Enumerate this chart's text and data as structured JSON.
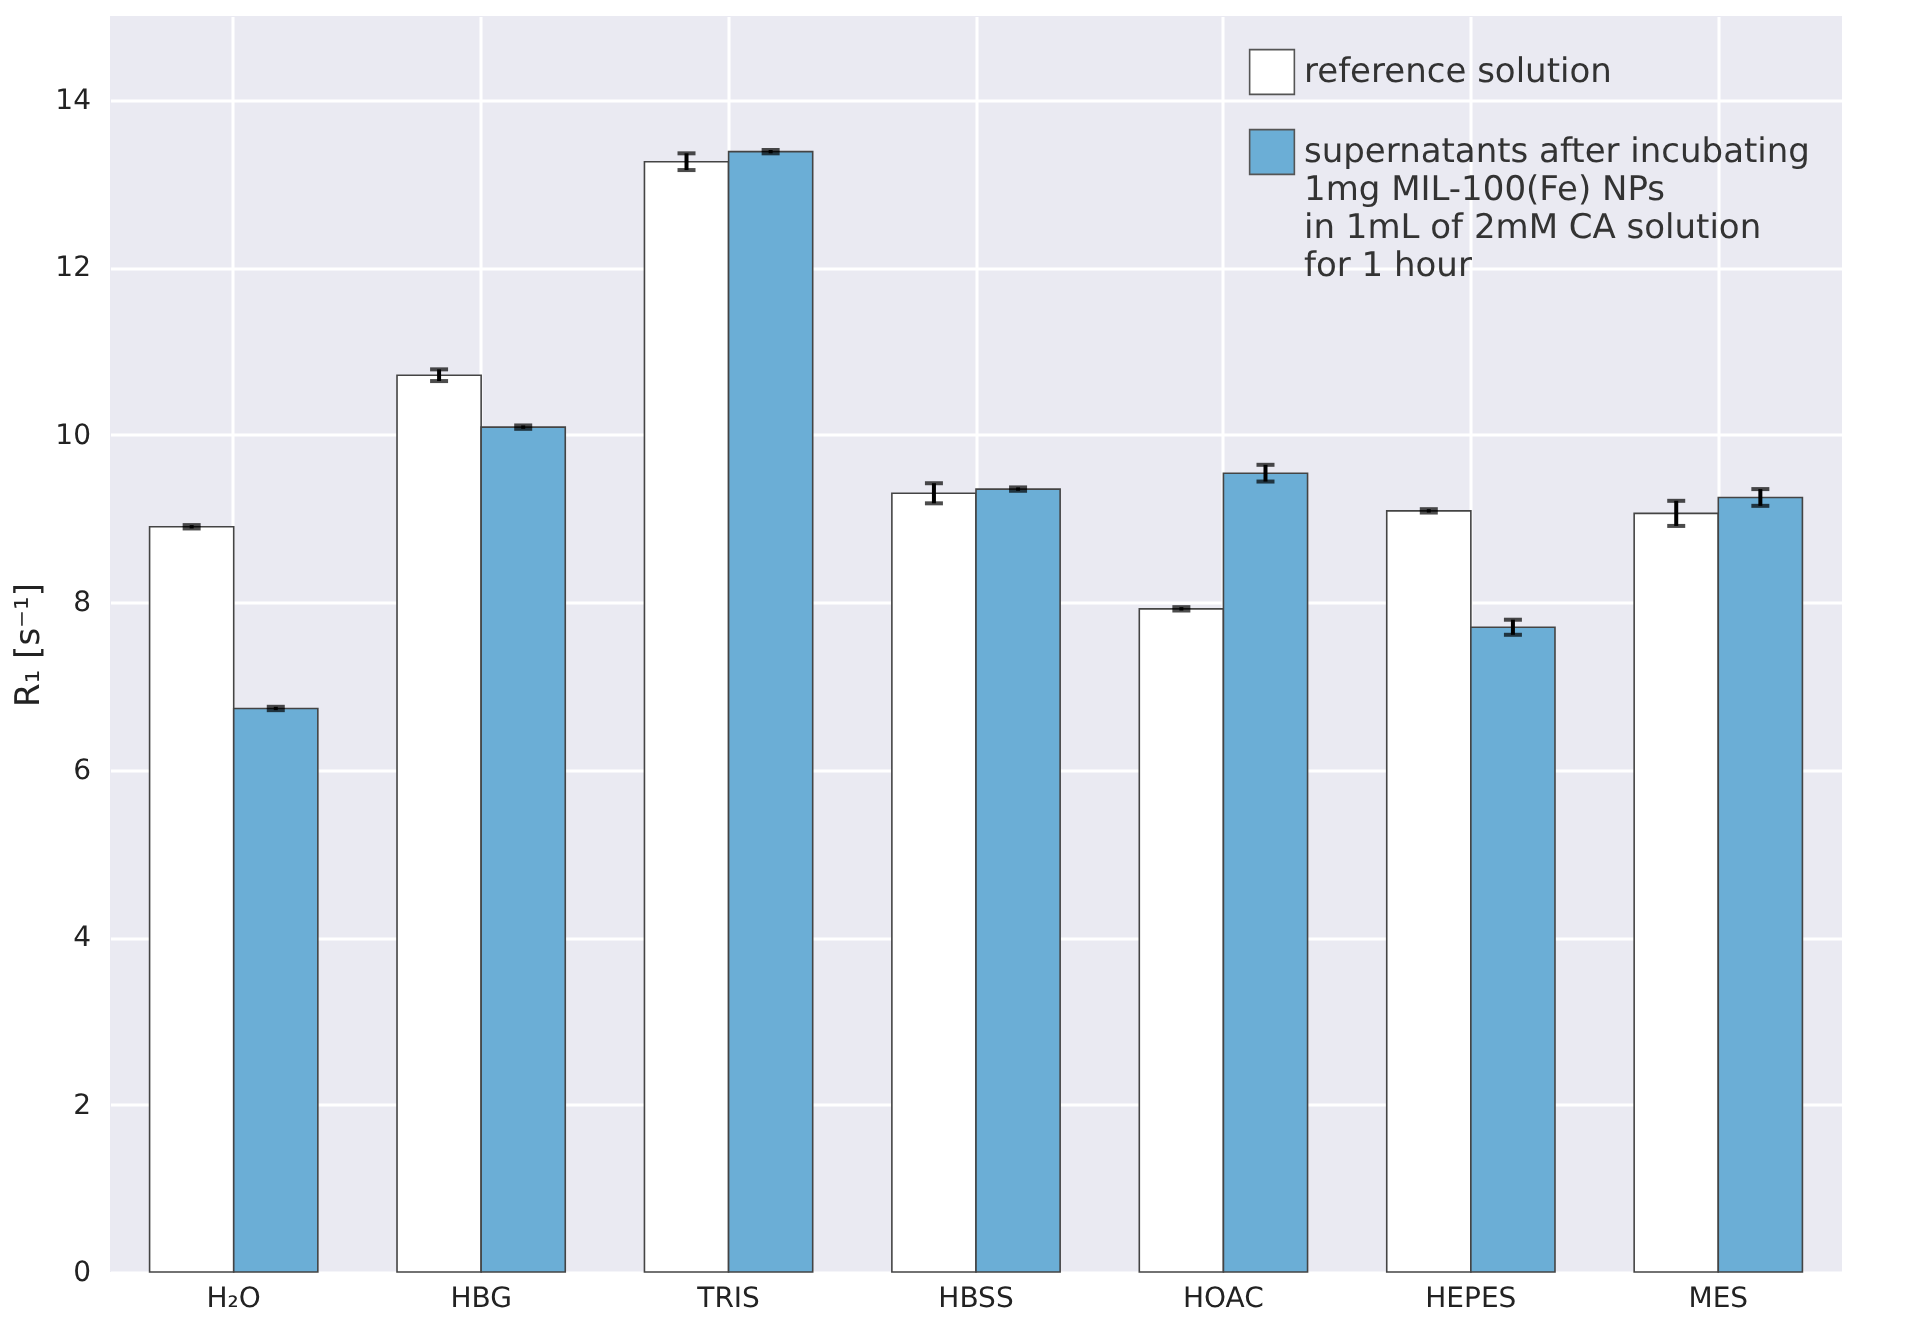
{
  "chart_data": {
    "type": "bar",
    "ylabel": "R₁ [s⁻¹]",
    "categories": [
      "H₂O",
      "HBG",
      "TRIS",
      "HBSS",
      "HOAC",
      "HEPES",
      "MES"
    ],
    "series": [
      {
        "name": "reference solution",
        "color": "#ffffff",
        "values": [
          8.9,
          10.71,
          13.26,
          9.3,
          7.92,
          9.09,
          9.06
        ],
        "errors": [
          0.02,
          0.07,
          0.1,
          0.12,
          0.02,
          0.02,
          0.15
        ]
      },
      {
        "name": "supernatants after incubating\n1mg MIL-100(Fe) NPs\nin 1mL of 2mM CA solution\nfor 1 hour",
        "color": "#6baed6",
        "values": [
          6.73,
          10.09,
          13.38,
          9.35,
          9.54,
          7.7,
          9.25
        ],
        "errors": [
          0.02,
          0.02,
          0.02,
          0.02,
          0.1,
          0.09,
          0.1
        ]
      }
    ],
    "ylim": [
      0,
      15
    ],
    "yticks": [
      0,
      2,
      4,
      6,
      8,
      10,
      12,
      14
    ],
    "grid": true,
    "legend": "top right"
  }
}
